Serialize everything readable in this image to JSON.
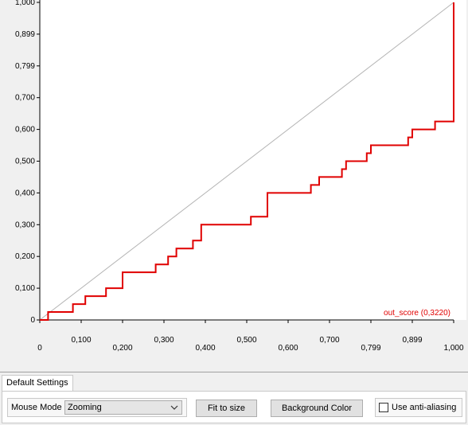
{
  "chart_data": {
    "type": "line",
    "xlim": [
      0,
      1
    ],
    "ylim": [
      0,
      1
    ],
    "x_tick_labels": [
      "0",
      "0,100",
      "0,200",
      "0,300",
      "0,400",
      "0,500",
      "0,600",
      "0,700",
      "0,799",
      "0,899",
      "1,000"
    ],
    "y_tick_labels": [
      "0",
      "0,100",
      "0,200",
      "0,300",
      "0,400",
      "0,500",
      "0,600",
      "0,700",
      "0,799",
      "0,899",
      "1,000"
    ],
    "grid": false,
    "series": [
      {
        "name": "out_score (0,3220)",
        "color": "#e00000",
        "x": [
          0,
          0.02,
          0.02,
          0.08,
          0.08,
          0.11,
          0.11,
          0.16,
          0.16,
          0.2,
          0.2,
          0.28,
          0.28,
          0.31,
          0.31,
          0.33,
          0.33,
          0.37,
          0.37,
          0.39,
          0.39,
          0.51,
          0.51,
          0.55,
          0.55,
          0.655,
          0.655,
          0.675,
          0.675,
          0.73,
          0.73,
          0.74,
          0.74,
          0.79,
          0.79,
          0.8,
          0.8,
          0.89,
          0.89,
          0.9,
          0.9,
          0.955,
          0.955,
          1.0,
          1.0
        ],
        "y": [
          0,
          0,
          0.025,
          0.025,
          0.05,
          0.05,
          0.075,
          0.075,
          0.1,
          0.1,
          0.15,
          0.15,
          0.175,
          0.175,
          0.2,
          0.2,
          0.225,
          0.225,
          0.25,
          0.25,
          0.3,
          0.3,
          0.325,
          0.325,
          0.4,
          0.4,
          0.425,
          0.425,
          0.45,
          0.45,
          0.475,
          0.475,
          0.5,
          0.5,
          0.525,
          0.525,
          0.55,
          0.55,
          0.575,
          0.575,
          0.6,
          0.6,
          0.625,
          0.625,
          1.0
        ]
      },
      {
        "name": "",
        "color": "#b4b4b4",
        "x": [
          0,
          1
        ],
        "y": [
          0,
          1
        ]
      }
    ]
  },
  "tabs": [
    {
      "label": "Default Settings",
      "active": true
    }
  ],
  "settings": {
    "mouse_mode_label": "Mouse Mode",
    "mouse_mode_value": "Zooming",
    "fit_button_label": "Fit to size",
    "background_color_button_label": "Background Color",
    "anti_aliasing_label": "Use anti-aliasing",
    "anti_aliasing_checked": false
  },
  "colors": {
    "plot_background": "#ffffff",
    "window_background": "#f0f0f0",
    "roc_curve": "#e00000",
    "diagonal": "#b4b4b4"
  }
}
